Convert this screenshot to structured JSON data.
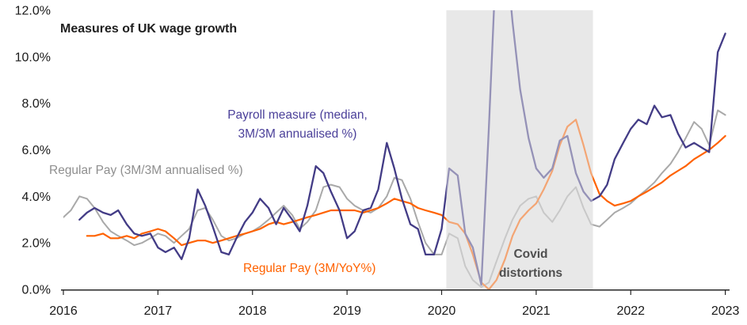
{
  "chart_data": {
    "type": "line",
    "title": "Measures of UK wage growth",
    "x_axis": {
      "range": [
        2016,
        2023.02
      ],
      "ticks": [
        2016,
        2017,
        2018,
        2019,
        2020,
        2021,
        2022,
        2023
      ]
    },
    "y_axis": {
      "range": [
        0,
        12
      ],
      "tick_values": [
        0,
        2,
        4,
        6,
        8,
        10,
        12
      ],
      "tick_labels": [
        "0.0%",
        "2.0%",
        "4.0%",
        "6.0%",
        "8.0%",
        "10.0%",
        "12.0%"
      ]
    },
    "grid": false,
    "covid_band": {
      "x_start": 2020.05,
      "x_end": 2021.6,
      "fill": "#e8e8e8",
      "fade_opacity": 0.5
    },
    "annotations": {
      "payroll_line1": "Payroll measure (median,",
      "payroll_line2": "3M/3M annualised %)",
      "regular_annualised": "Regular Pay (3M/3M annualised %)",
      "regular_yoy": "Regular Pay (3M/YoY%)",
      "covid_line1": "Covid",
      "covid_line2": "distortions"
    },
    "series": [
      {
        "name": "Regular Pay (3M/3M annualised %)",
        "color": "#a9a9a9",
        "width": 2,
        "points": [
          [
            2016.0,
            3.1
          ],
          [
            2016.08,
            3.4
          ],
          [
            2016.17,
            4.0
          ],
          [
            2016.25,
            3.9
          ],
          [
            2016.33,
            3.5
          ],
          [
            2016.42,
            2.9
          ],
          [
            2016.5,
            2.5
          ],
          [
            2016.58,
            2.3
          ],
          [
            2016.67,
            2.1
          ],
          [
            2016.75,
            1.9
          ],
          [
            2016.83,
            2.0
          ],
          [
            2016.92,
            2.2
          ],
          [
            2017.0,
            2.4
          ],
          [
            2017.08,
            2.3
          ],
          [
            2017.17,
            2.0
          ],
          [
            2017.25,
            2.3
          ],
          [
            2017.33,
            2.6
          ],
          [
            2017.42,
            3.4
          ],
          [
            2017.5,
            3.5
          ],
          [
            2017.58,
            3.0
          ],
          [
            2017.67,
            2.3
          ],
          [
            2017.75,
            2.1
          ],
          [
            2017.83,
            2.2
          ],
          [
            2017.92,
            2.4
          ],
          [
            2018.0,
            2.5
          ],
          [
            2018.08,
            2.7
          ],
          [
            2018.17,
            3.0
          ],
          [
            2018.25,
            3.3
          ],
          [
            2018.33,
            3.6
          ],
          [
            2018.42,
            3.2
          ],
          [
            2018.5,
            2.6
          ],
          [
            2018.58,
            2.9
          ],
          [
            2018.67,
            3.4
          ],
          [
            2018.75,
            4.4
          ],
          [
            2018.83,
            4.5
          ],
          [
            2018.92,
            4.4
          ],
          [
            2019.0,
            3.9
          ],
          [
            2019.08,
            3.6
          ],
          [
            2019.17,
            3.4
          ],
          [
            2019.25,
            3.3
          ],
          [
            2019.33,
            3.5
          ],
          [
            2019.42,
            4.0
          ],
          [
            2019.5,
            4.8
          ],
          [
            2019.58,
            4.7
          ],
          [
            2019.67,
            3.9
          ],
          [
            2019.75,
            2.9
          ],
          [
            2019.83,
            2.0
          ],
          [
            2019.92,
            1.5
          ],
          [
            2020.0,
            1.5
          ],
          [
            2020.08,
            2.4
          ],
          [
            2020.17,
            2.2
          ],
          [
            2020.25,
            1.0
          ],
          [
            2020.33,
            0.4
          ],
          [
            2020.42,
            0.1
          ],
          [
            2020.5,
            0.3
          ],
          [
            2020.58,
            1.2
          ],
          [
            2020.67,
            2.2
          ],
          [
            2020.75,
            3.0
          ],
          [
            2020.83,
            3.6
          ],
          [
            2020.92,
            3.9
          ],
          [
            2021.0,
            4.0
          ],
          [
            2021.08,
            3.3
          ],
          [
            2021.17,
            2.9
          ],
          [
            2021.25,
            3.4
          ],
          [
            2021.33,
            4.0
          ],
          [
            2021.42,
            4.4
          ],
          [
            2021.5,
            3.5
          ],
          [
            2021.58,
            2.8
          ],
          [
            2021.67,
            2.7
          ],
          [
            2021.75,
            3.0
          ],
          [
            2021.83,
            3.3
          ],
          [
            2021.92,
            3.5
          ],
          [
            2022.0,
            3.7
          ],
          [
            2022.08,
            4.0
          ],
          [
            2022.17,
            4.3
          ],
          [
            2022.25,
            4.6
          ],
          [
            2022.33,
            5.0
          ],
          [
            2022.42,
            5.4
          ],
          [
            2022.5,
            5.9
          ],
          [
            2022.58,
            6.5
          ],
          [
            2022.67,
            7.2
          ],
          [
            2022.75,
            6.9
          ],
          [
            2022.83,
            6.2
          ],
          [
            2022.92,
            7.7
          ],
          [
            2023.0,
            7.5
          ]
        ]
      },
      {
        "name": "Regular Pay (3M/YoY%)",
        "color": "#ff6200",
        "width": 2.2,
        "points": [
          [
            2016.25,
            2.3
          ],
          [
            2016.33,
            2.3
          ],
          [
            2016.42,
            2.4
          ],
          [
            2016.5,
            2.2
          ],
          [
            2016.58,
            2.2
          ],
          [
            2016.67,
            2.3
          ],
          [
            2016.75,
            2.2
          ],
          [
            2016.83,
            2.4
          ],
          [
            2016.92,
            2.5
          ],
          [
            2017.0,
            2.6
          ],
          [
            2017.08,
            2.5
          ],
          [
            2017.17,
            2.2
          ],
          [
            2017.25,
            1.9
          ],
          [
            2017.33,
            2.0
          ],
          [
            2017.42,
            2.1
          ],
          [
            2017.5,
            2.1
          ],
          [
            2017.58,
            2.0
          ],
          [
            2017.67,
            2.1
          ],
          [
            2017.75,
            2.2
          ],
          [
            2017.83,
            2.3
          ],
          [
            2017.92,
            2.4
          ],
          [
            2018.0,
            2.5
          ],
          [
            2018.08,
            2.6
          ],
          [
            2018.17,
            2.8
          ],
          [
            2018.25,
            2.9
          ],
          [
            2018.33,
            2.8
          ],
          [
            2018.42,
            2.9
          ],
          [
            2018.5,
            3.0
          ],
          [
            2018.58,
            3.1
          ],
          [
            2018.67,
            3.2
          ],
          [
            2018.75,
            3.3
          ],
          [
            2018.83,
            3.4
          ],
          [
            2018.92,
            3.4
          ],
          [
            2019.0,
            3.4
          ],
          [
            2019.08,
            3.4
          ],
          [
            2019.17,
            3.3
          ],
          [
            2019.25,
            3.4
          ],
          [
            2019.33,
            3.5
          ],
          [
            2019.42,
            3.7
          ],
          [
            2019.5,
            3.9
          ],
          [
            2019.58,
            3.8
          ],
          [
            2019.67,
            3.7
          ],
          [
            2019.75,
            3.5
          ],
          [
            2019.83,
            3.4
          ],
          [
            2019.92,
            3.3
          ],
          [
            2020.0,
            3.2
          ],
          [
            2020.08,
            2.9
          ],
          [
            2020.17,
            2.8
          ],
          [
            2020.25,
            2.4
          ],
          [
            2020.33,
            1.5
          ],
          [
            2020.42,
            0.3
          ],
          [
            2020.5,
            0.0
          ],
          [
            2020.58,
            0.4
          ],
          [
            2020.67,
            1.3
          ],
          [
            2020.75,
            2.3
          ],
          [
            2020.83,
            3.0
          ],
          [
            2020.92,
            3.4
          ],
          [
            2021.0,
            3.7
          ],
          [
            2021.08,
            4.3
          ],
          [
            2021.17,
            5.1
          ],
          [
            2021.25,
            6.2
          ],
          [
            2021.33,
            7.0
          ],
          [
            2021.42,
            7.3
          ],
          [
            2021.5,
            6.2
          ],
          [
            2021.58,
            5.0
          ],
          [
            2021.67,
            4.1
          ],
          [
            2021.75,
            3.8
          ],
          [
            2021.83,
            3.6
          ],
          [
            2021.92,
            3.7
          ],
          [
            2022.0,
            3.8
          ],
          [
            2022.08,
            4.0
          ],
          [
            2022.17,
            4.2
          ],
          [
            2022.25,
            4.4
          ],
          [
            2022.33,
            4.6
          ],
          [
            2022.42,
            4.9
          ],
          [
            2022.5,
            5.1
          ],
          [
            2022.58,
            5.3
          ],
          [
            2022.67,
            5.6
          ],
          [
            2022.75,
            5.8
          ],
          [
            2022.83,
            6.0
          ],
          [
            2022.92,
            6.3
          ],
          [
            2023.0,
            6.6
          ]
        ]
      },
      {
        "name": "Payroll measure (median, 3M/3M annualised %)",
        "color": "#433c86",
        "width": 2.3,
        "points": [
          [
            2016.17,
            3.0
          ],
          [
            2016.25,
            3.3
          ],
          [
            2016.33,
            3.5
          ],
          [
            2016.42,
            3.3
          ],
          [
            2016.5,
            3.2
          ],
          [
            2016.58,
            3.4
          ],
          [
            2016.67,
            2.8
          ],
          [
            2016.75,
            2.4
          ],
          [
            2016.83,
            2.3
          ],
          [
            2016.92,
            2.4
          ],
          [
            2017.0,
            1.8
          ],
          [
            2017.08,
            1.6
          ],
          [
            2017.17,
            1.8
          ],
          [
            2017.25,
            1.3
          ],
          [
            2017.33,
            2.2
          ],
          [
            2017.42,
            4.3
          ],
          [
            2017.5,
            3.6
          ],
          [
            2017.58,
            2.7
          ],
          [
            2017.67,
            1.6
          ],
          [
            2017.75,
            1.5
          ],
          [
            2017.83,
            2.2
          ],
          [
            2017.92,
            2.9
          ],
          [
            2018.0,
            3.3
          ],
          [
            2018.08,
            3.9
          ],
          [
            2018.17,
            3.5
          ],
          [
            2018.25,
            2.8
          ],
          [
            2018.33,
            3.5
          ],
          [
            2018.42,
            3.0
          ],
          [
            2018.5,
            2.5
          ],
          [
            2018.58,
            3.6
          ],
          [
            2018.67,
            5.3
          ],
          [
            2018.75,
            5.0
          ],
          [
            2018.83,
            4.2
          ],
          [
            2018.92,
            3.4
          ],
          [
            2019.0,
            2.2
          ],
          [
            2019.08,
            2.5
          ],
          [
            2019.17,
            3.4
          ],
          [
            2019.25,
            3.5
          ],
          [
            2019.33,
            4.3
          ],
          [
            2019.42,
            6.3
          ],
          [
            2019.5,
            5.2
          ],
          [
            2019.58,
            3.9
          ],
          [
            2019.67,
            2.8
          ],
          [
            2019.75,
            2.6
          ],
          [
            2019.83,
            1.5
          ],
          [
            2019.92,
            1.5
          ],
          [
            2020.0,
            2.6
          ],
          [
            2020.08,
            5.2
          ],
          [
            2020.17,
            4.9
          ],
          [
            2020.25,
            2.4
          ],
          [
            2020.33,
            1.8
          ],
          [
            2020.42,
            0.2
          ],
          [
            2020.5,
            7.0
          ],
          [
            2020.58,
            14.5
          ],
          [
            2020.67,
            15.0
          ],
          [
            2020.75,
            11.5
          ],
          [
            2020.83,
            8.6
          ],
          [
            2020.92,
            6.5
          ],
          [
            2021.0,
            5.2
          ],
          [
            2021.08,
            4.8
          ],
          [
            2021.17,
            5.2
          ],
          [
            2021.25,
            6.4
          ],
          [
            2021.33,
            6.6
          ],
          [
            2021.42,
            5.0
          ],
          [
            2021.5,
            4.2
          ],
          [
            2021.58,
            3.8
          ],
          [
            2021.67,
            4.0
          ],
          [
            2021.75,
            4.5
          ],
          [
            2021.83,
            5.6
          ],
          [
            2021.92,
            6.3
          ],
          [
            2022.0,
            6.9
          ],
          [
            2022.08,
            7.3
          ],
          [
            2022.17,
            7.1
          ],
          [
            2022.25,
            7.9
          ],
          [
            2022.33,
            7.4
          ],
          [
            2022.42,
            7.5
          ],
          [
            2022.5,
            6.7
          ],
          [
            2022.58,
            6.1
          ],
          [
            2022.67,
            6.3
          ],
          [
            2022.75,
            6.1
          ],
          [
            2022.83,
            5.9
          ],
          [
            2022.92,
            10.2
          ],
          [
            2023.0,
            11.0
          ]
        ]
      }
    ],
    "axis_color": "#262626",
    "tick_label_color": "#1a1a1a"
  }
}
